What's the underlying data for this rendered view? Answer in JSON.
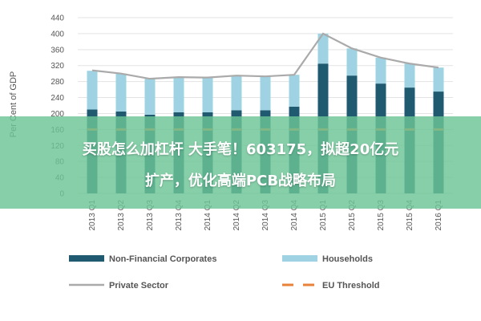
{
  "chart_data": {
    "type": "bar",
    "stacked": true,
    "ylabel": "Per Cent of GDP",
    "ylim": [
      0,
      440
    ],
    "yticks": [
      0,
      40,
      80,
      120,
      160,
      200,
      240,
      280,
      320,
      360,
      400,
      440
    ],
    "grid": true,
    "legend_position": "bottom",
    "categories": [
      "2013 Q1",
      "2013 Q2",
      "2013 Q3",
      "2013 Q4",
      "2014 Q1",
      "2014 Q2",
      "2014 Q3",
      "2014 Q4",
      "2015 Q1",
      "2015 Q2",
      "2015 Q3",
      "2015 Q4",
      "2016 Q1"
    ],
    "series": [
      {
        "name": "Non-Financial Corporates",
        "kind": "bar",
        "color": "#1f5a70",
        "values": [
          210,
          205,
          197,
          203,
          203,
          208,
          208,
          217,
          325,
          295,
          275,
          265,
          255
        ]
      },
      {
        "name": "Households",
        "kind": "bar",
        "color": "#9fd3e3",
        "values": [
          97,
          95,
          90,
          88,
          87,
          87,
          85,
          80,
          75,
          68,
          65,
          60,
          60
        ]
      },
      {
        "name": "Private Sector",
        "kind": "line",
        "color": "#aaaaaa",
        "values": [
          308,
          300,
          287,
          291,
          290,
          295,
          293,
          297,
          400,
          363,
          340,
          325,
          315
        ]
      },
      {
        "name": "EU Threshold",
        "kind": "dashed",
        "color": "#e8813a",
        "values": [
          160,
          160,
          160,
          160,
          160,
          160,
          160,
          160,
          160,
          160,
          160,
          160,
          160
        ]
      }
    ]
  },
  "overlay": {
    "line1": "买股怎么加杠杆 大手笔！603175，拟超20亿元",
    "line2": "扩产，优化高端PCB战略布局"
  }
}
